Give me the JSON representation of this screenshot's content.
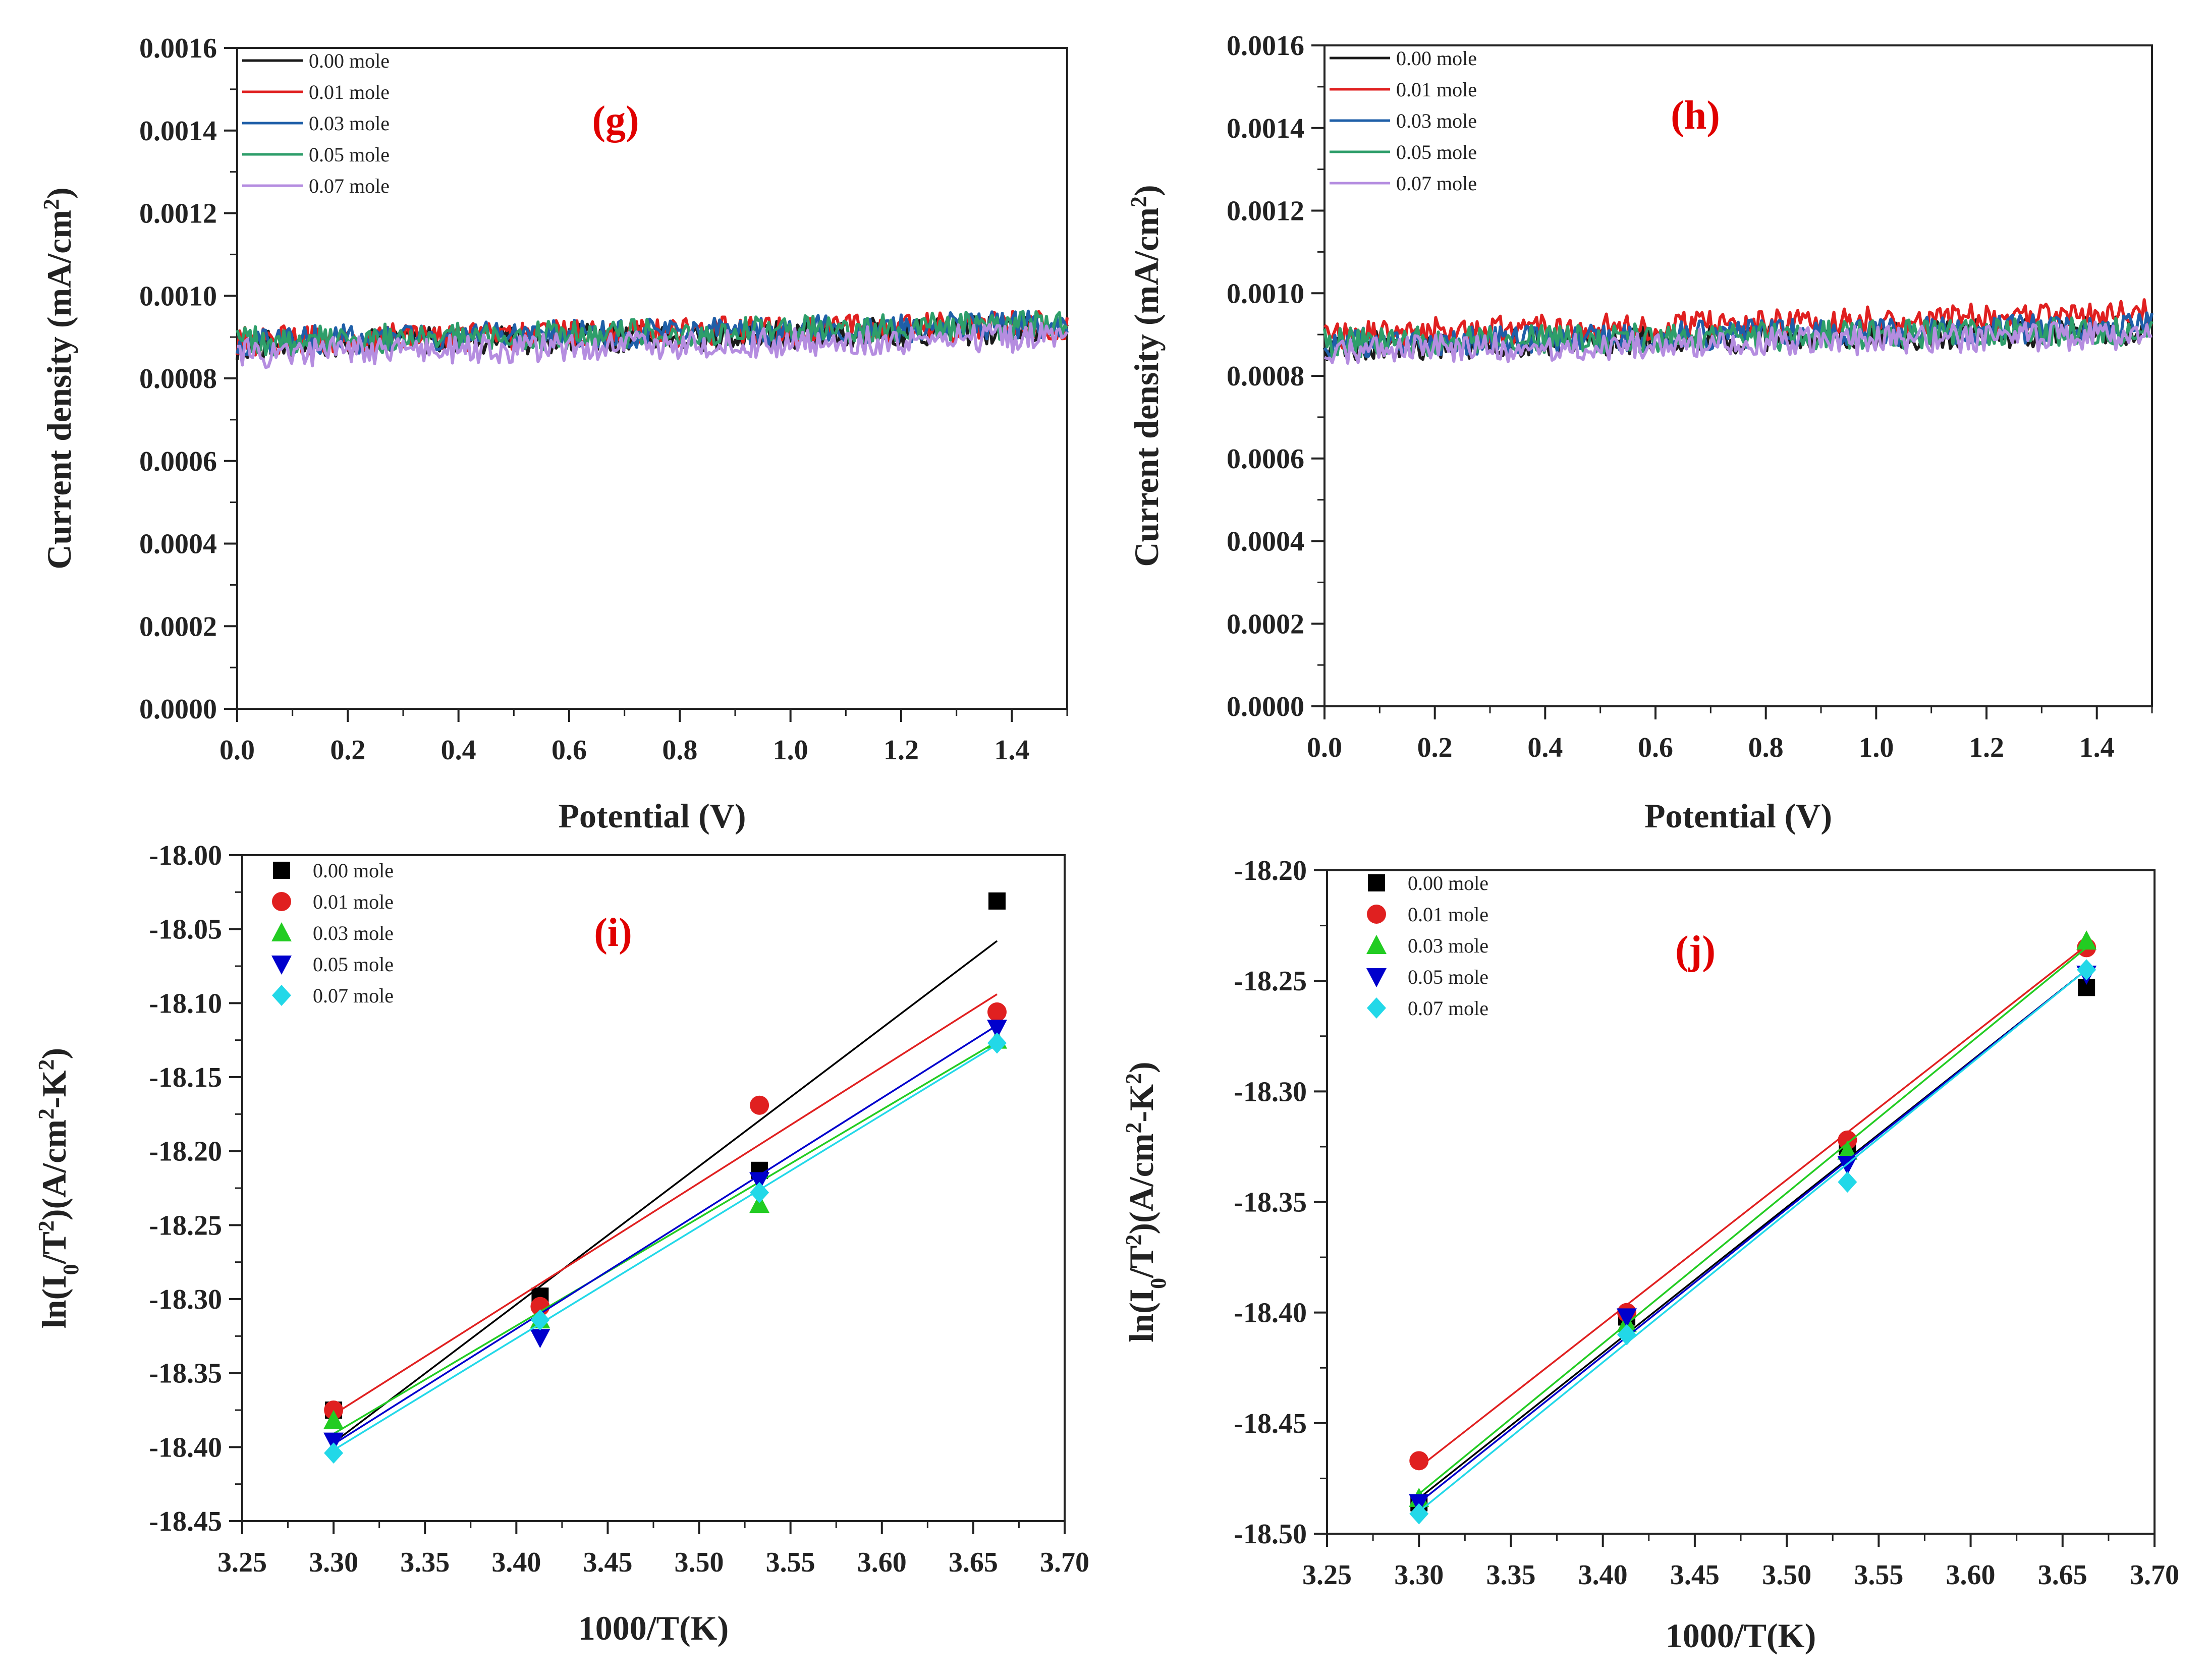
{
  "chart_data": [
    {
      "id": "g",
      "type": "line",
      "panel_label": "(g)",
      "xlabel": "Potential (V)",
      "ylabel_main": "Current density (mA/cm",
      "ylabel_sup": "2",
      "ylabel_end": ")",
      "xlim": [
        0.0,
        1.5
      ],
      "ylim": [
        0.0,
        0.0016
      ],
      "xticks": [
        "0.0",
        "0.2",
        "0.4",
        "0.6",
        "0.8",
        "1.0",
        "1.2",
        "1.4"
      ],
      "yticks": [
        "0.0000",
        "0.0002",
        "0.0004",
        "0.0006",
        "0.0008",
        "0.0010",
        "0.0012",
        "0.0014",
        "0.0016"
      ],
      "series": [
        {
          "name": "0.00 mole",
          "color": "#1a1a1a",
          "x": [
            0,
            1.5
          ],
          "y": [
            0.00088,
            0.00092
          ]
        },
        {
          "name": "0.01 mole",
          "color": "#e02020",
          "x": [
            0,
            1.5
          ],
          "y": [
            0.00089,
            0.00093
          ]
        },
        {
          "name": "0.03 mole",
          "color": "#1f5fa8",
          "x": [
            0,
            1.5
          ],
          "y": [
            0.00089,
            0.00093
          ]
        },
        {
          "name": "0.05 mole",
          "color": "#2e9e6a",
          "x": [
            0,
            1.5
          ],
          "y": [
            0.00089,
            0.00093
          ]
        },
        {
          "name": "0.07 mole",
          "color": "#b58de0",
          "x": [
            0,
            1.5
          ],
          "y": [
            0.00086,
            0.0009
          ]
        }
      ]
    },
    {
      "id": "h",
      "type": "line",
      "panel_label": "(h)",
      "xlabel": "Potential (V)",
      "ylabel_main": "Current density (mA/cm",
      "ylabel_sup": "2",
      "ylabel_end": ")",
      "xlim": [
        0.0,
        1.5
      ],
      "ylim": [
        0.0,
        0.0016
      ],
      "xticks": [
        "0.0",
        "0.2",
        "0.4",
        "0.6",
        "0.8",
        "1.0",
        "1.2",
        "1.4"
      ],
      "yticks": [
        "0.0000",
        "0.0002",
        "0.0004",
        "0.0006",
        "0.0008",
        "0.0010",
        "0.0012",
        "0.0014",
        "0.0016"
      ],
      "series": [
        {
          "name": "0.00 mole",
          "color": "#1a1a1a",
          "x": [
            0,
            1.5
          ],
          "y": [
            0.00087,
            0.00091
          ]
        },
        {
          "name": "0.01 mole",
          "color": "#e02020",
          "x": [
            0,
            1.5
          ],
          "y": [
            0.0009,
            0.00095
          ]
        },
        {
          "name": "0.03 mole",
          "color": "#1f5fa8",
          "x": [
            0,
            1.5
          ],
          "y": [
            0.00088,
            0.00092
          ]
        },
        {
          "name": "0.05 mole",
          "color": "#2e9e6a",
          "x": [
            0,
            1.5
          ],
          "y": [
            0.00088,
            0.00091
          ]
        },
        {
          "name": "0.07 mole",
          "color": "#b58de0",
          "x": [
            0,
            1.5
          ],
          "y": [
            0.00086,
            0.0009
          ]
        }
      ]
    },
    {
      "id": "i",
      "type": "scatter",
      "panel_label": "(i)",
      "xlabel": "1000/T(K)",
      "ylabel_main": "ln(I",
      "ylabel_sub": "0",
      "ylabel_mid": "/T",
      "ylabel_sup1": "2",
      "ylabel_mid2": ")(A/cm",
      "ylabel_sup2": "2",
      "ylabel_mid3": "-K",
      "ylabel_sup3": "2",
      "ylabel_end": ")",
      "xlim": [
        3.25,
        3.7
      ],
      "ylim": [
        -18.45,
        -18.0
      ],
      "xticks": [
        "3.25",
        "3.30",
        "3.35",
        "3.40",
        "3.45",
        "3.50",
        "3.55",
        "3.60",
        "3.65",
        "3.70"
      ],
      "yticks": [
        "-18.45",
        "-18.40",
        "-18.35",
        "-18.30",
        "-18.25",
        "-18.20",
        "-18.15",
        "-18.10",
        "-18.05",
        "-18.00"
      ],
      "series": [
        {
          "name": "0.00 mole",
          "color": "#000000",
          "marker": "square",
          "x": [
            3.3,
            3.413,
            3.533,
            3.663
          ],
          "y": [
            -18.375,
            -18.298,
            -18.213,
            -18.031
          ],
          "fit": [
            -18.397,
            -18.058
          ]
        },
        {
          "name": "0.01 mole",
          "color": "#e02020",
          "marker": "circle",
          "x": [
            3.3,
            3.413,
            3.533,
            3.663
          ],
          "y": [
            -18.375,
            -18.305,
            -18.169,
            -18.106
          ],
          "fit": [
            -18.378,
            -18.094
          ]
        },
        {
          "name": "0.03 mole",
          "color": "#22cc22",
          "marker": "triangle-up",
          "x": [
            3.3,
            3.413,
            3.533,
            3.663
          ],
          "y": [
            -18.382,
            -18.314,
            -18.236,
            -18.125
          ],
          "fit": [
            -18.391,
            -18.126
          ]
        },
        {
          "name": "0.05 mole",
          "color": "#0000cc",
          "marker": "triangle-down",
          "x": [
            3.3,
            3.413,
            3.533,
            3.663
          ],
          "y": [
            -18.396,
            -18.326,
            -18.22,
            -18.117
          ],
          "fit": [
            -18.398,
            -18.115
          ]
        },
        {
          "name": "0.07 mole",
          "color": "#22d8e8",
          "marker": "diamond",
          "x": [
            3.3,
            3.413,
            3.533,
            3.663
          ],
          "y": [
            -18.404,
            -18.314,
            -18.228,
            -18.127
          ],
          "fit": [
            -18.402,
            -18.128
          ]
        }
      ]
    },
    {
      "id": "j",
      "type": "scatter",
      "panel_label": "(j)",
      "xlabel": "1000/T(K)",
      "ylabel_main": "ln(I",
      "ylabel_sub": "0",
      "ylabel_mid": "/T",
      "ylabel_sup1": "2",
      "ylabel_mid2": ")(A/cm",
      "ylabel_sup2": "2",
      "ylabel_mid3": "-K",
      "ylabel_sup3": "2",
      "ylabel_end": ")",
      "xlim": [
        3.25,
        3.7
      ],
      "ylim": [
        -18.5,
        -18.2
      ],
      "xticks": [
        "3.25",
        "3.30",
        "3.35",
        "3.40",
        "3.45",
        "3.50",
        "3.55",
        "3.60",
        "3.65",
        "3.70"
      ],
      "yticks": [
        "-18.50",
        "-18.45",
        "-18.40",
        "-18.35",
        "-18.30",
        "-18.25",
        "-18.20"
      ],
      "series": [
        {
          "name": "0.00 mole",
          "color": "#000000",
          "marker": "square",
          "x": [
            3.3,
            3.413,
            3.533,
            3.663
          ],
          "y": [
            -18.486,
            -18.402,
            -18.325,
            -18.253
          ],
          "fit": [
            -18.484,
            -18.245
          ]
        },
        {
          "name": "0.01 mole",
          "color": "#e02020",
          "marker": "circle",
          "x": [
            3.3,
            3.413,
            3.533,
            3.663
          ],
          "y": [
            -18.467,
            -18.4,
            -18.322,
            -18.235
          ],
          "fit": [
            -18.47,
            -18.234
          ]
        },
        {
          "name": "0.03 mole",
          "color": "#22cc22",
          "marker": "triangle-up",
          "x": [
            3.3,
            3.413,
            3.533,
            3.663
          ],
          "y": [
            -18.484,
            -18.405,
            -18.327,
            -18.232
          ],
          "fit": [
            -18.482,
            -18.235
          ]
        },
        {
          "name": "0.05 mole",
          "color": "#0000cc",
          "marker": "triangle-down",
          "x": [
            3.3,
            3.413,
            3.533,
            3.663
          ],
          "y": [
            -18.486,
            -18.402,
            -18.333,
            -18.247
          ],
          "fit": [
            -18.486,
            -18.245
          ]
        },
        {
          "name": "0.07 mole",
          "color": "#22d8e8",
          "marker": "diamond",
          "x": [
            3.3,
            3.413,
            3.533,
            3.663
          ],
          "y": [
            -18.491,
            -18.41,
            -18.341,
            -18.245
          ],
          "fit": [
            -18.49,
            -18.245
          ]
        }
      ]
    }
  ]
}
